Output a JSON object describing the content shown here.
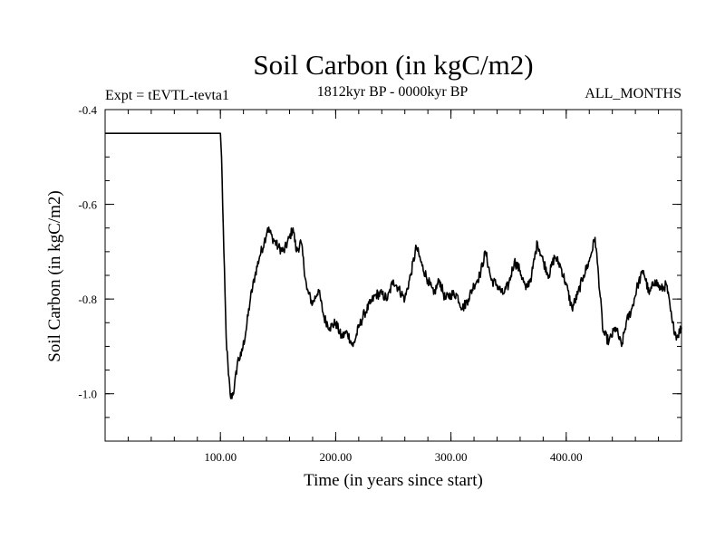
{
  "chart_data": {
    "type": "line",
    "title": "Soil Carbon (in kgC/m2)",
    "subtitle_left": "Expt = tEVTL-tevta1",
    "subtitle_center": "1812kyr BP - 0000kyr BP",
    "subtitle_right": "ALL_MONTHS",
    "xlabel": "Time (in years since start)",
    "ylabel": "Soil Carbon (in kgC/m2)",
    "xlim": [
      0,
      500
    ],
    "ylim": [
      -1.1,
      -0.4
    ],
    "x_ticks": [
      {
        "value": 100,
        "label": "100.00"
      },
      {
        "value": 200,
        "label": "200.00"
      },
      {
        "value": 300,
        "label": "300.00"
      },
      {
        "value": 400,
        "label": "400.00"
      }
    ],
    "y_ticks": [
      {
        "value": -0.4,
        "label": "-0.4"
      },
      {
        "value": -0.6,
        "label": "-0.6"
      },
      {
        "value": -0.8,
        "label": "-0.8"
      },
      {
        "value": -1.0,
        "label": "-1.0"
      }
    ],
    "series": [
      {
        "name": "Soil Carbon",
        "color": "#000000",
        "points": [
          [
            0,
            -0.45
          ],
          [
            100,
            -0.45
          ],
          [
            101,
            -0.5
          ],
          [
            103,
            -0.7
          ],
          [
            105,
            -0.88
          ],
          [
            107,
            -0.96
          ],
          [
            109,
            -1.01
          ],
          [
            112,
            -0.99
          ],
          [
            115,
            -0.93
          ],
          [
            118,
            -0.92
          ],
          [
            122,
            -0.87
          ],
          [
            126,
            -0.8
          ],
          [
            130,
            -0.75
          ],
          [
            134,
            -0.71
          ],
          [
            138,
            -0.68
          ],
          [
            141,
            -0.65
          ],
          [
            145,
            -0.67
          ],
          [
            150,
            -0.69
          ],
          [
            155,
            -0.7
          ],
          [
            160,
            -0.67
          ],
          [
            163,
            -0.65
          ],
          [
            166,
            -0.7
          ],
          [
            170,
            -0.68
          ],
          [
            175,
            -0.78
          ],
          [
            180,
            -0.81
          ],
          [
            185,
            -0.78
          ],
          [
            190,
            -0.84
          ],
          [
            195,
            -0.86
          ],
          [
            200,
            -0.85
          ],
          [
            205,
            -0.88
          ],
          [
            210,
            -0.87
          ],
          [
            215,
            -0.9
          ],
          [
            220,
            -0.86
          ],
          [
            225,
            -0.83
          ],
          [
            230,
            -0.81
          ],
          [
            235,
            -0.79
          ],
          [
            240,
            -0.79
          ],
          [
            245,
            -0.8
          ],
          [
            250,
            -0.76
          ],
          [
            255,
            -0.78
          ],
          [
            260,
            -0.8
          ],
          [
            265,
            -0.75
          ],
          [
            270,
            -0.69
          ],
          [
            275,
            -0.73
          ],
          [
            280,
            -0.76
          ],
          [
            285,
            -0.79
          ],
          [
            290,
            -0.76
          ],
          [
            295,
            -0.8
          ],
          [
            300,
            -0.79
          ],
          [
            305,
            -0.79
          ],
          [
            310,
            -0.82
          ],
          [
            315,
            -0.8
          ],
          [
            320,
            -0.77
          ],
          [
            325,
            -0.75
          ],
          [
            330,
            -0.7
          ],
          [
            335,
            -0.76
          ],
          [
            340,
            -0.77
          ],
          [
            345,
            -0.79
          ],
          [
            350,
            -0.77
          ],
          [
            355,
            -0.72
          ],
          [
            360,
            -0.74
          ],
          [
            365,
            -0.78
          ],
          [
            370,
            -0.75
          ],
          [
            375,
            -0.68
          ],
          [
            380,
            -0.72
          ],
          [
            385,
            -0.75
          ],
          [
            390,
            -0.71
          ],
          [
            395,
            -0.73
          ],
          [
            400,
            -0.77
          ],
          [
            405,
            -0.82
          ],
          [
            410,
            -0.79
          ],
          [
            415,
            -0.75
          ],
          [
            420,
            -0.72
          ],
          [
            425,
            -0.67
          ],
          [
            428,
            -0.75
          ],
          [
            432,
            -0.87
          ],
          [
            437,
            -0.89
          ],
          [
            443,
            -0.86
          ],
          [
            448,
            -0.9
          ],
          [
            452,
            -0.85
          ],
          [
            457,
            -0.82
          ],
          [
            462,
            -0.77
          ],
          [
            467,
            -0.74
          ],
          [
            472,
            -0.79
          ],
          [
            477,
            -0.76
          ],
          [
            482,
            -0.78
          ],
          [
            487,
            -0.77
          ],
          [
            492,
            -0.85
          ],
          [
            496,
            -0.88
          ],
          [
            500,
            -0.86
          ]
        ]
      }
    ]
  }
}
